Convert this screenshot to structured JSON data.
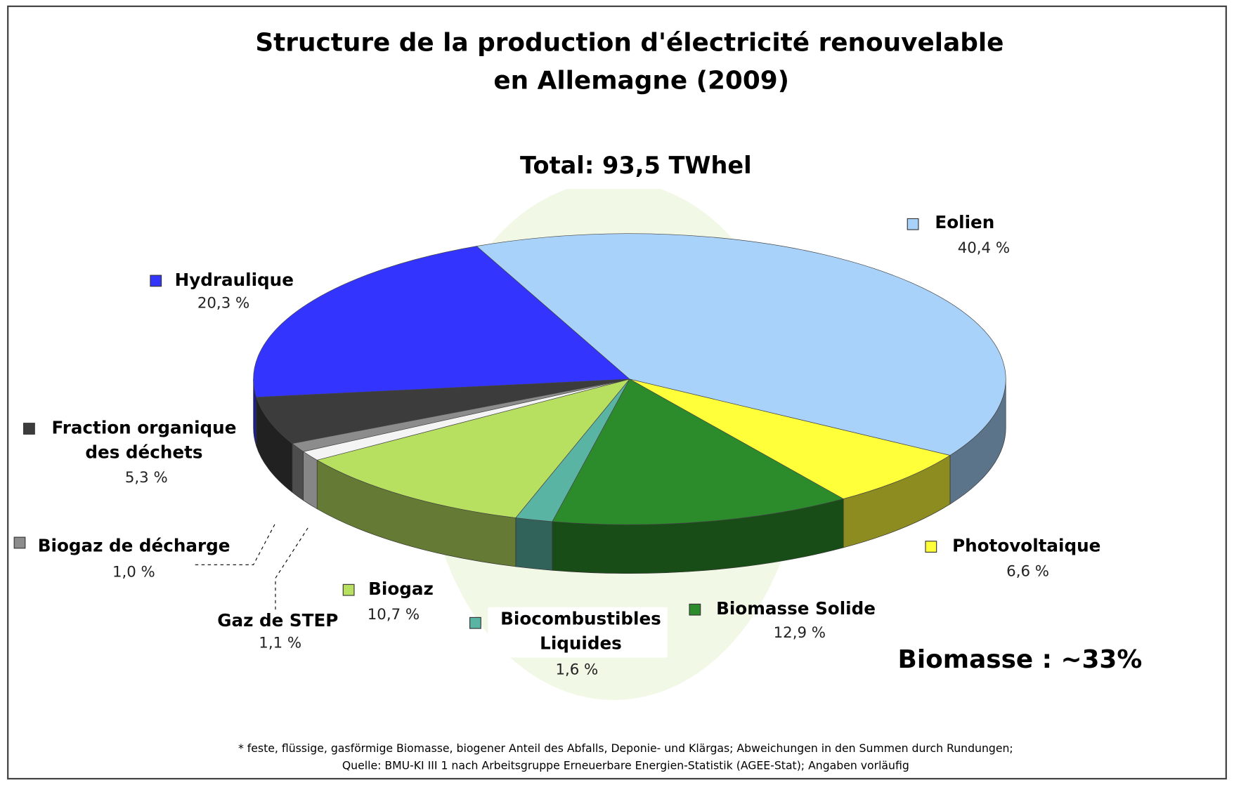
{
  "chart_data": {
    "type": "pie",
    "title": [
      "Structure de la production d'électricité renouvelable",
      "en Allemagne (2009)"
    ],
    "annotations": [
      "Total: 93,5 TWhel",
      "Biomasse : ~33%"
    ],
    "categories": [
      "Eolien",
      "Photovoltaique",
      "Biomasse Solide",
      "Biocombustibles Liquides",
      "Biogaz",
      "Gaz de STEP",
      "Biogaz de décharge",
      "Fraction organique des déchets",
      "Hydraulique"
    ],
    "values": [
      40.4,
      6.6,
      12.9,
      1.6,
      10.7,
      1.1,
      1.0,
      5.3,
      20.3
    ],
    "value_labels": [
      "40,4 %",
      "6,6 %",
      "12,9 %",
      "1,6 %",
      "10,7 %",
      "1,1 %",
      "1,0 %",
      "5,3 %",
      "20,3 %"
    ],
    "colors": [
      "#a8d2fa",
      "#ffff3a",
      "#2c8c2c",
      "#5ab4a4",
      "#b8e060",
      "#f4f4f4",
      "#8c8c8c",
      "#3c3c3c",
      "#3434ff"
    ],
    "footnote": [
      "* feste, flüssige, gasförmige Biomasse, biogener Anteil des Abfalls, Deponie- und Klärgas; Abweichungen in den Summen durch Rundungen;",
      "Quelle: BMU-KI III 1 nach Arbeitsgruppe Erneuerbare Energien-Statistik (AGEE-Stat); Angaben vorläufig"
    ]
  }
}
